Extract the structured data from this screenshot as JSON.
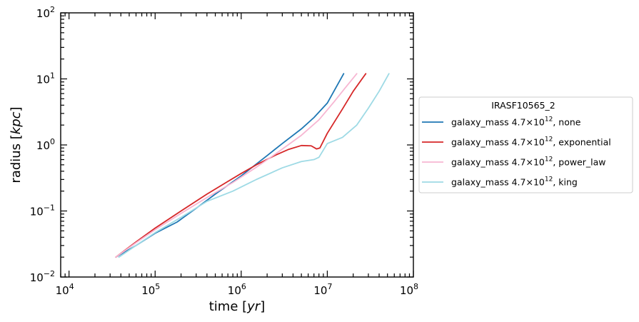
{
  "chart_data": {
    "type": "line",
    "xscale": "log",
    "yscale": "log",
    "xlim": [
      8000,
      100000000
    ],
    "ylim": [
      0.01,
      100
    ],
    "xlabel": "time [yr]",
    "ylabel": "radius [kpc]",
    "x_ticks": [
      {
        "value": 10000,
        "base": "10",
        "exp": "4"
      },
      {
        "value": 100000,
        "base": "10",
        "exp": "5"
      },
      {
        "value": 1000000,
        "base": "10",
        "exp": "6"
      },
      {
        "value": 10000000,
        "base": "10",
        "exp": "7"
      },
      {
        "value": 100000000,
        "base": "10",
        "exp": "8"
      }
    ],
    "y_ticks": [
      {
        "value": 0.01,
        "base": "10",
        "exp": "−2"
      },
      {
        "value": 0.1,
        "base": "10",
        "exp": "−1"
      },
      {
        "value": 1,
        "base": "10",
        "exp": "0"
      },
      {
        "value": 10,
        "base": "10",
        "exp": "1"
      },
      {
        "value": 100,
        "base": "10",
        "exp": "2"
      }
    ],
    "grid": false,
    "legend": {
      "placement": "outside-right",
      "title": "IRASF10565_2",
      "entries": [
        {
          "prefix": "galaxy_mass 4.7×10",
          "sup": "12",
          "suffix": ", none"
        },
        {
          "prefix": "galaxy_mass 4.7×10",
          "sup": "12",
          "suffix": ", exponential"
        },
        {
          "prefix": "galaxy_mass 4.7×10",
          "sup": "12",
          "suffix": ", power_law"
        },
        {
          "prefix": "galaxy_mass 4.7×10",
          "sup": "12",
          "suffix": ", king"
        }
      ]
    },
    "series": [
      {
        "name": "galaxy_mass 4.7×10^12, none",
        "color": "#1f77b4",
        "points": [
          [
            35000,
            0.02
          ],
          [
            60000,
            0.03
          ],
          [
            100000,
            0.046
          ],
          [
            180000,
            0.068
          ],
          [
            300000,
            0.11
          ],
          [
            500000,
            0.18
          ],
          [
            1000000,
            0.34
          ],
          [
            2000000,
            0.69
          ],
          [
            3000000,
            1.05
          ],
          [
            5000000,
            1.75
          ],
          [
            7000000,
            2.6
          ],
          [
            10000000,
            4.3
          ],
          [
            15500000,
            12
          ]
        ]
      },
      {
        "name": "galaxy_mass 4.7×10^12, exponential",
        "color": "#d62728",
        "points": [
          [
            35000,
            0.02
          ],
          [
            60000,
            0.034
          ],
          [
            100000,
            0.055
          ],
          [
            200000,
            0.1
          ],
          [
            400000,
            0.18
          ],
          [
            700000,
            0.28
          ],
          [
            1000000,
            0.37
          ],
          [
            1500000,
            0.5
          ],
          [
            2500000,
            0.7
          ],
          [
            3500000,
            0.85
          ],
          [
            5000000,
            0.98
          ],
          [
            6500000,
            0.97
          ],
          [
            7500000,
            0.87
          ],
          [
            8200000,
            0.9
          ],
          [
            10000000,
            1.5
          ],
          [
            15000000,
            3.5
          ],
          [
            20000000,
            6.5
          ],
          [
            28000000,
            12
          ]
        ]
      },
      {
        "name": "galaxy_mass 4.7×10^12, power_law",
        "color": "#f7b6d2",
        "points": [
          [
            35000,
            0.02
          ],
          [
            60000,
            0.033
          ],
          [
            100000,
            0.052
          ],
          [
            200000,
            0.092
          ],
          [
            400000,
            0.16
          ],
          [
            800000,
            0.27
          ],
          [
            1500000,
            0.46
          ],
          [
            2500000,
            0.73
          ],
          [
            3500000,
            1.0
          ],
          [
            5000000,
            1.4
          ],
          [
            8000000,
            2.4
          ],
          [
            12000000,
            4.5
          ],
          [
            16000000,
            7.2
          ],
          [
            22000000,
            12
          ]
        ]
      },
      {
        "name": "galaxy_mass 4.7×10^12, king",
        "color": "#9edae5",
        "points": [
          [
            38000,
            0.02
          ],
          [
            60000,
            0.03
          ],
          [
            100000,
            0.047
          ],
          [
            200000,
            0.08
          ],
          [
            400000,
            0.14
          ],
          [
            800000,
            0.2
          ],
          [
            1500000,
            0.3
          ],
          [
            3000000,
            0.45
          ],
          [
            5000000,
            0.56
          ],
          [
            7000000,
            0.6
          ],
          [
            8000000,
            0.65
          ],
          [
            10000000,
            1.05
          ],
          [
            15000000,
            1.3
          ],
          [
            22000000,
            2.0
          ],
          [
            30000000,
            3.6
          ],
          [
            40000000,
            6.5
          ],
          [
            52000000,
            12
          ]
        ]
      }
    ]
  }
}
